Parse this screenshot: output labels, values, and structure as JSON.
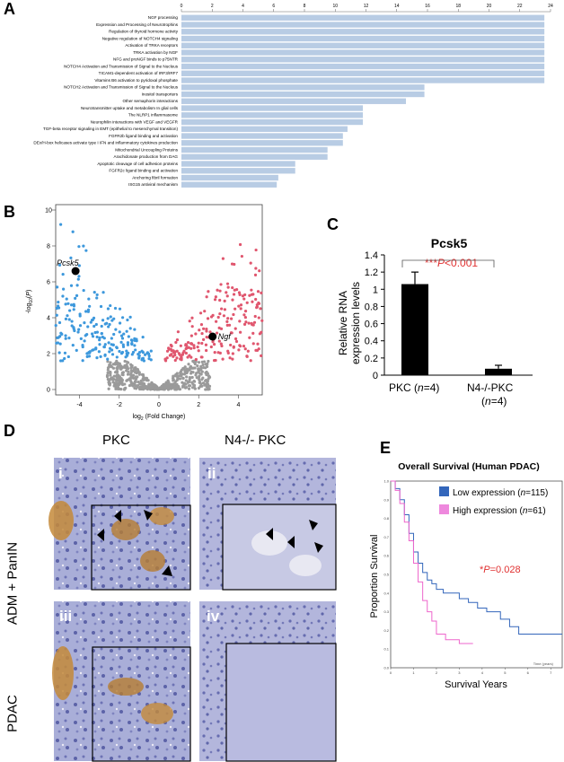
{
  "panels": {
    "a": "A",
    "b": "B",
    "c": "C",
    "d": "D",
    "e": "E"
  },
  "chart_data": [
    {
      "type": "bar",
      "orientation": "horizontal",
      "title": "",
      "xlim": [
        0,
        24
      ],
      "xticks": [
        "0",
        "2",
        "4",
        "6",
        "8",
        "10",
        "12",
        "14",
        "16",
        "18",
        "20",
        "22",
        "24"
      ],
      "categories": [
        "NGF processing",
        "Expression and Processing of Neurotrophins",
        "Regulation of thyroid hormone activity",
        "Negative regulation of NOTCH4 signaling",
        "Activation of TRKA receptors",
        "TRKA activation by NGF",
        "NFG and proNGF binds to p75NTR",
        "NOTCH4 Activation and Transmission of Signal to the Nucleus",
        "TICAM1-dependent activation of IRF3/IRF7",
        "Vitamins B6 activation to pyridoxal phosphate",
        "NOTCH2 Activation and Transmission of Signal to the Nucleus",
        "Inositol transporters",
        "Other semaphorin interactions",
        "Neurotransmitter uptake and metabolism In glial cells",
        "The NLRP1 inflammasome",
        "Neurophilin interactions with VEGF and VEGFR",
        "TGF-beta receptor signaling in EMT (epithelial to mesenchymal transition)",
        "FGFR2b ligand binding and activation",
        "DEx/H-box helicases activate type I IFN and inflammatory cytokines production",
        "Mitochondrial Uncoupling Proteins",
        "Arachidonate production from DAG",
        "Apoptotic cleavage of cell adhesion proteins",
        "FGFR2c ligand binding and activation",
        "Anchoring fibril formation",
        "ISG15 antiviral mechanism"
      ],
      "values": [
        23.6,
        23.6,
        23.6,
        23.6,
        23.6,
        23.6,
        23.6,
        23.6,
        23.6,
        23.6,
        15.8,
        15.8,
        14.6,
        11.8,
        11.8,
        11.8,
        10.8,
        10.5,
        10.5,
        9.5,
        9.5,
        7.4,
        7.4,
        6.3,
        6.2
      ],
      "bar_color": "#b8cce4"
    },
    {
      "type": "scatter",
      "subtype": "volcano",
      "xlabel": "log2 (Fold Change)",
      "ylabel": "-log10(P)",
      "xlim": [
        -5.2,
        5.2
      ],
      "ylim": [
        -0.3,
        10.3
      ],
      "xticks": [
        "-4",
        "-2",
        "0",
        "2",
        "4"
      ],
      "yticks": [
        "0",
        "2",
        "4",
        "6",
        "8",
        "10"
      ],
      "colors": {
        "down": "#3d98dc",
        "up": "#e0566e",
        "ns": "#9a9a9a",
        "highlight": "#000000"
      },
      "highlighted": [
        {
          "label": "Pcsk5",
          "x": -4.2,
          "y": 6.6
        },
        {
          "label": "Ngf",
          "x": 2.7,
          "y": 2.95
        }
      ]
    },
    {
      "type": "bar",
      "title": "Pcsk5",
      "ylabel": "Relative RNA expression levels",
      "ylim": [
        0,
        1.4
      ],
      "yticks": [
        "0",
        "0.2",
        "0.4",
        "0.6",
        "0.8",
        "1",
        "1.2",
        "1.4"
      ],
      "categories": [
        "PKC (n=4)",
        "N4-/-PKC (n=4)"
      ],
      "values": [
        1.06,
        0.075
      ],
      "errors": [
        0.14,
        0.04
      ],
      "bar_color": "#000000",
      "annotation": "***P<0.001",
      "annotation_color": "#e03030"
    },
    {
      "type": "line",
      "subtype": "kaplan-meier",
      "title": "Overall Survival (Human PDAC)",
      "xlabel": "Survival Years",
      "ylabel": "Proportion Survival",
      "xticks": [
        "0",
        "1",
        "2",
        "3",
        "4",
        "5",
        "6",
        "7"
      ],
      "yticks": [
        "0.0",
        "0.1",
        "0.2",
        "0.3",
        "0.4",
        "0.5",
        "0.6",
        "0.7",
        "0.8",
        "0.9",
        "1.0"
      ],
      "axis_unit_label": "Time (years)",
      "xlim": [
        0,
        7.5
      ],
      "ylim": [
        0,
        1
      ],
      "series": [
        {
          "name": "Low expression (n=115)",
          "color": "#3366bb",
          "x": [
            0,
            0.2,
            0.4,
            0.6,
            0.8,
            1.0,
            1.2,
            1.4,
            1.6,
            1.8,
            2.0,
            2.3,
            2.6,
            3.0,
            3.4,
            3.8,
            4.2,
            4.8,
            5.2,
            5.6,
            6.0,
            7.5
          ],
          "y": [
            1.0,
            0.96,
            0.9,
            0.82,
            0.72,
            0.62,
            0.56,
            0.51,
            0.47,
            0.45,
            0.42,
            0.4,
            0.4,
            0.37,
            0.35,
            0.32,
            0.3,
            0.26,
            0.22,
            0.18,
            0.18,
            0.18
          ]
        },
        {
          "name": "High expression (n=61)",
          "color": "#ee66cc",
          "x": [
            0,
            0.2,
            0.4,
            0.6,
            0.8,
            1.0,
            1.2,
            1.4,
            1.6,
            1.8,
            2.0,
            2.4,
            3.0,
            3.6
          ],
          "y": [
            1.0,
            0.95,
            0.88,
            0.78,
            0.68,
            0.56,
            0.46,
            0.36,
            0.3,
            0.25,
            0.18,
            0.15,
            0.13,
            0.13
          ]
        }
      ],
      "annotation": "*P=0.028",
      "annotation_color": "#e03030"
    }
  ],
  "histology": {
    "col_headers": [
      "PKC",
      "N4-/- PKC"
    ],
    "row_labels": [
      "ADM + PanIN",
      "PDAC"
    ],
    "tiles": [
      "i",
      "ii",
      "iii",
      "iv"
    ]
  }
}
